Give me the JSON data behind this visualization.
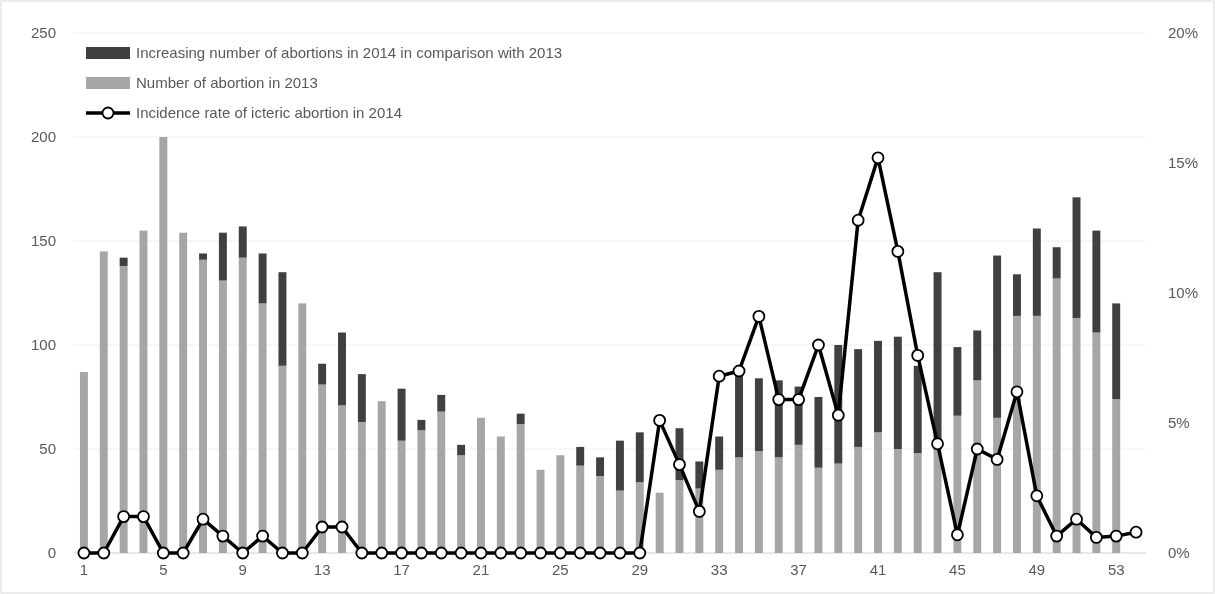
{
  "chart_data": {
    "type": "bar",
    "stacked": true,
    "categories": [
      "1",
      null,
      null,
      null,
      "5",
      null,
      null,
      null,
      "9",
      null,
      null,
      null,
      "13",
      null,
      null,
      null,
      "17",
      null,
      null,
      null,
      "21",
      null,
      null,
      null,
      "25",
      null,
      null,
      null,
      "29",
      null,
      null,
      null,
      "33",
      null,
      null,
      null,
      "37",
      null,
      null,
      null,
      "41",
      null,
      null,
      null,
      "45",
      null,
      null,
      null,
      "49",
      null,
      null,
      null,
      "53",
      null
    ],
    "series": [
      {
        "name": "Number of abortion in 2013",
        "color": "#a6a6a6",
        "values": [
          87,
          145,
          138,
          155,
          200,
          154,
          141,
          131,
          142,
          120,
          90,
          120,
          81,
          71,
          63,
          73,
          54,
          59,
          68,
          47,
          65,
          56,
          62,
          40,
          47,
          42,
          37,
          30,
          34,
          29,
          35,
          31,
          40,
          46,
          49,
          46,
          52,
          41,
          43,
          51,
          58,
          50,
          48,
          50,
          66,
          83,
          65,
          114,
          114,
          132,
          113,
          106,
          74,
          null
        ]
      },
      {
        "name": "Increasing number of abortions in 2014 in comparison with 2013",
        "color": "#404040",
        "values": [
          null,
          null,
          4,
          null,
          null,
          null,
          3,
          23,
          15,
          24,
          45,
          null,
          10,
          35,
          23,
          null,
          25,
          5,
          8,
          5,
          null,
          null,
          5,
          null,
          null,
          9,
          9,
          24,
          24,
          null,
          25,
          13,
          16,
          40,
          35,
          37,
          28,
          34,
          57,
          47,
          44,
          54,
          42,
          85,
          33,
          24,
          78,
          20,
          42,
          15,
          58,
          49,
          46,
          null
        ]
      },
      {
        "name": "Incidence rate of icteric abortion in 2014",
        "type": "line",
        "axis": "y2",
        "color": "#000000",
        "marker": "circle",
        "values": [
          0,
          0,
          1.4,
          1.4,
          0,
          0,
          1.3,
          0.65,
          0,
          0.65,
          0,
          0,
          1.0,
          1.0,
          0,
          0,
          0,
          0,
          0,
          0,
          0,
          0,
          0,
          0,
          0,
          0,
          0,
          0,
          0,
          5.1,
          3.4,
          1.6,
          6.8,
          7.0,
          9.1,
          5.9,
          5.9,
          8.0,
          5.3,
          12.8,
          15.2,
          11.6,
          7.6,
          4.2,
          0.7,
          4.0,
          3.6,
          6.2,
          2.2,
          0.65,
          1.3,
          0.6,
          0.65,
          0.8
        ]
      }
    ],
    "ylim": [
      0,
      250
    ],
    "yticks": [
      0,
      50,
      100,
      150,
      200,
      250
    ],
    "y2lim": [
      0,
      20
    ],
    "y2ticks": [
      {
        "value": 0,
        "label": "0%"
      },
      {
        "value": 5,
        "label": "5%"
      },
      {
        "value": 10,
        "label": "10%"
      },
      {
        "value": 15,
        "label": "15%"
      },
      {
        "value": 20,
        "label": "20%"
      }
    ],
    "grid": "y",
    "legend": "top left"
  }
}
